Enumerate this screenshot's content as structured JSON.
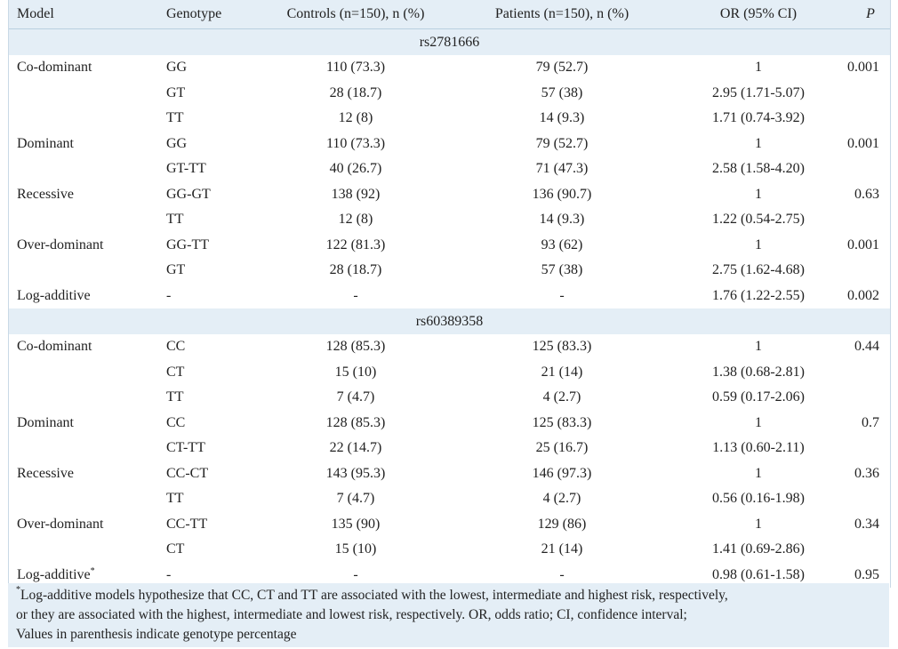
{
  "table": {
    "headers": {
      "model": "Model",
      "genotype": "Genotype",
      "controls": "Controls (n=150), n (%)",
      "patients": "Patients (n=150), n (%)",
      "or": "OR (95% CI)",
      "p": "P"
    },
    "sections": [
      {
        "label": "rs2781666",
        "rows": [
          {
            "model": "Co-dominant",
            "genotype": "GG",
            "controls": "110 (73.3)",
            "patients": "79 (52.7)",
            "or": "1",
            "p": "0.001"
          },
          {
            "model": "",
            "genotype": "GT",
            "controls": "28 (18.7)",
            "patients": "57 (38)",
            "or": "2.95 (1.71-5.07)",
            "p": ""
          },
          {
            "model": "",
            "genotype": "TT",
            "controls": "12 (8)",
            "patients": "14 (9.3)",
            "or": "1.71 (0.74-3.92)",
            "p": ""
          },
          {
            "model": "Dominant",
            "genotype": "GG",
            "controls": "110 (73.3)",
            "patients": "79 (52.7)",
            "or": "1",
            "p": "0.001"
          },
          {
            "model": "",
            "genotype": "GT-TT",
            "controls": "40 (26.7)",
            "patients": "71 (47.3)",
            "or": "2.58 (1.58-4.20)",
            "p": ""
          },
          {
            "model": "Recessive",
            "genotype": "GG-GT",
            "controls": "138 (92)",
            "patients": "136 (90.7)",
            "or": "1",
            "p": "0.63"
          },
          {
            "model": "",
            "genotype": "TT",
            "controls": "12 (8)",
            "patients": "14 (9.3)",
            "or": "1.22 (0.54-2.75)",
            "p": ""
          },
          {
            "model": "Over-dominant",
            "genotype": "GG-TT",
            "controls": "122 (81.3)",
            "patients": "93 (62)",
            "or": "1",
            "p": "0.001"
          },
          {
            "model": "",
            "genotype": "GT",
            "controls": "28 (18.7)",
            "patients": "57 (38)",
            "or": "2.75 (1.62-4.68)",
            "p": ""
          },
          {
            "model": "Log-additive",
            "genotype": "-",
            "controls": "-",
            "patients": "-",
            "or": "1.76 (1.22-2.55)",
            "p": "0.002"
          }
        ]
      },
      {
        "label": "rs60389358",
        "rows": [
          {
            "model": "Co-dominant",
            "genotype": "CC",
            "controls": "128 (85.3)",
            "patients": "125 (83.3)",
            "or": "1",
            "p": "0.44"
          },
          {
            "model": "",
            "genotype": "CT",
            "controls": "15 (10)",
            "patients": "21 (14)",
            "or": "1.38 (0.68-2.81)",
            "p": ""
          },
          {
            "model": "",
            "genotype": "TT",
            "controls": "7 (4.7)",
            "patients": "4 (2.7)",
            "or": "0.59 (0.17-2.06)",
            "p": ""
          },
          {
            "model": "Dominant",
            "genotype": "CC",
            "controls": "128 (85.3)",
            "patients": "125 (83.3)",
            "or": "1",
            "p": "0.7"
          },
          {
            "model": "",
            "genotype": "CT-TT",
            "controls": "22 (14.7)",
            "patients": "25 (16.7)",
            "or": "1.13 (0.60-2.11)",
            "p": ""
          },
          {
            "model": "Recessive",
            "genotype": "CC-CT",
            "controls": "143 (95.3)",
            "patients": "146 (97.3)",
            "or": "1",
            "p": "0.36"
          },
          {
            "model": "",
            "genotype": "TT",
            "controls": "7 (4.7)",
            "patients": "4 (2.7)",
            "or": "0.56 (0.16-1.98)",
            "p": ""
          },
          {
            "model": "Over-dominant",
            "genotype": "CC-TT",
            "controls": "135 (90)",
            "patients": "129 (86)",
            "or": "1",
            "p": "0.34"
          },
          {
            "model": "",
            "genotype": "CT",
            "controls": "15 (10)",
            "patients": "21 (14)",
            "or": "1.41 (0.69-2.86)",
            "p": ""
          },
          {
            "model": "Log-additive",
            "model_sup": "*",
            "genotype": "-",
            "controls": "-",
            "patients": "-",
            "or": "0.98 (0.61-1.58)",
            "p": "0.95"
          }
        ]
      }
    ]
  },
  "footnote": {
    "marker": "*",
    "line1": "Log-additive models hypothesize that CC, CT and TT are associated with the lowest, intermediate and highest risk, respectively,",
    "line2": "or they are associated with the highest, intermediate and lowest risk, respectively. OR, odds ratio; CI, confidence interval;",
    "line3": "Values in parenthesis indicate genotype percentage"
  },
  "colors": {
    "header_bg": "#e4eef6",
    "text": "#222222"
  }
}
